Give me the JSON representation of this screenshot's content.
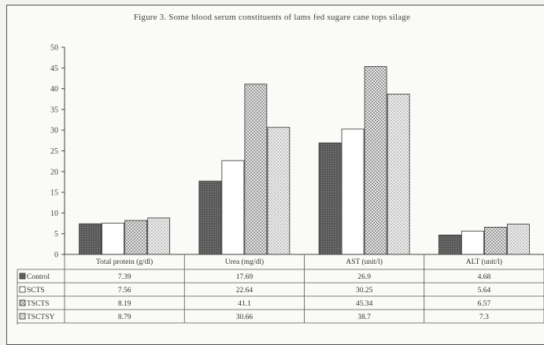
{
  "title": "Figure 3. Some blood serum constituents of lams fed sugare cane tops silage",
  "chart_data": {
    "type": "bar",
    "title": "Figure 3. Some blood serum constituents of lams fed sugare cane tops silage",
    "categories": [
      "Total protein (g/dl)",
      "Urea (mg/dl)",
      "AST (unit/l)",
      "ALT (unit/l)"
    ],
    "ylim": [
      0,
      50
    ],
    "yticks": [
      "0",
      "5",
      "10",
      "15",
      "20",
      "25",
      "30",
      "35",
      "40",
      "45",
      "50"
    ],
    "grid": false,
    "legend": "data table below plot",
    "series": [
      {
        "name": "Control",
        "values": [
          7.39,
          17.69,
          26.9,
          4.68
        ],
        "labels": [
          "7.39",
          "17.69",
          "26.9",
          "4.68"
        ],
        "color": "#555555",
        "pattern": "dark"
      },
      {
        "name": "SCTS",
        "values": [
          7.56,
          22.64,
          30.25,
          5.64
        ],
        "labels": [
          "7.56",
          "22.64",
          "30.25",
          "5.64"
        ],
        "color": "#ffffff",
        "pattern": "none"
      },
      {
        "name": "TSCTS",
        "values": [
          8.19,
          41.1,
          45.34,
          6.57
        ],
        "labels": [
          "8.19",
          "41.1",
          "45.34",
          "6.57"
        ],
        "color": "#c8c8c8",
        "pattern": "checker"
      },
      {
        "name": "TSCTSY",
        "values": [
          8.79,
          30.66,
          38.7,
          7.3
        ],
        "labels": [
          "8.79",
          "30.66",
          "38.7",
          "7.3"
        ],
        "color": "#d6d6d6",
        "pattern": "dots"
      }
    ]
  }
}
